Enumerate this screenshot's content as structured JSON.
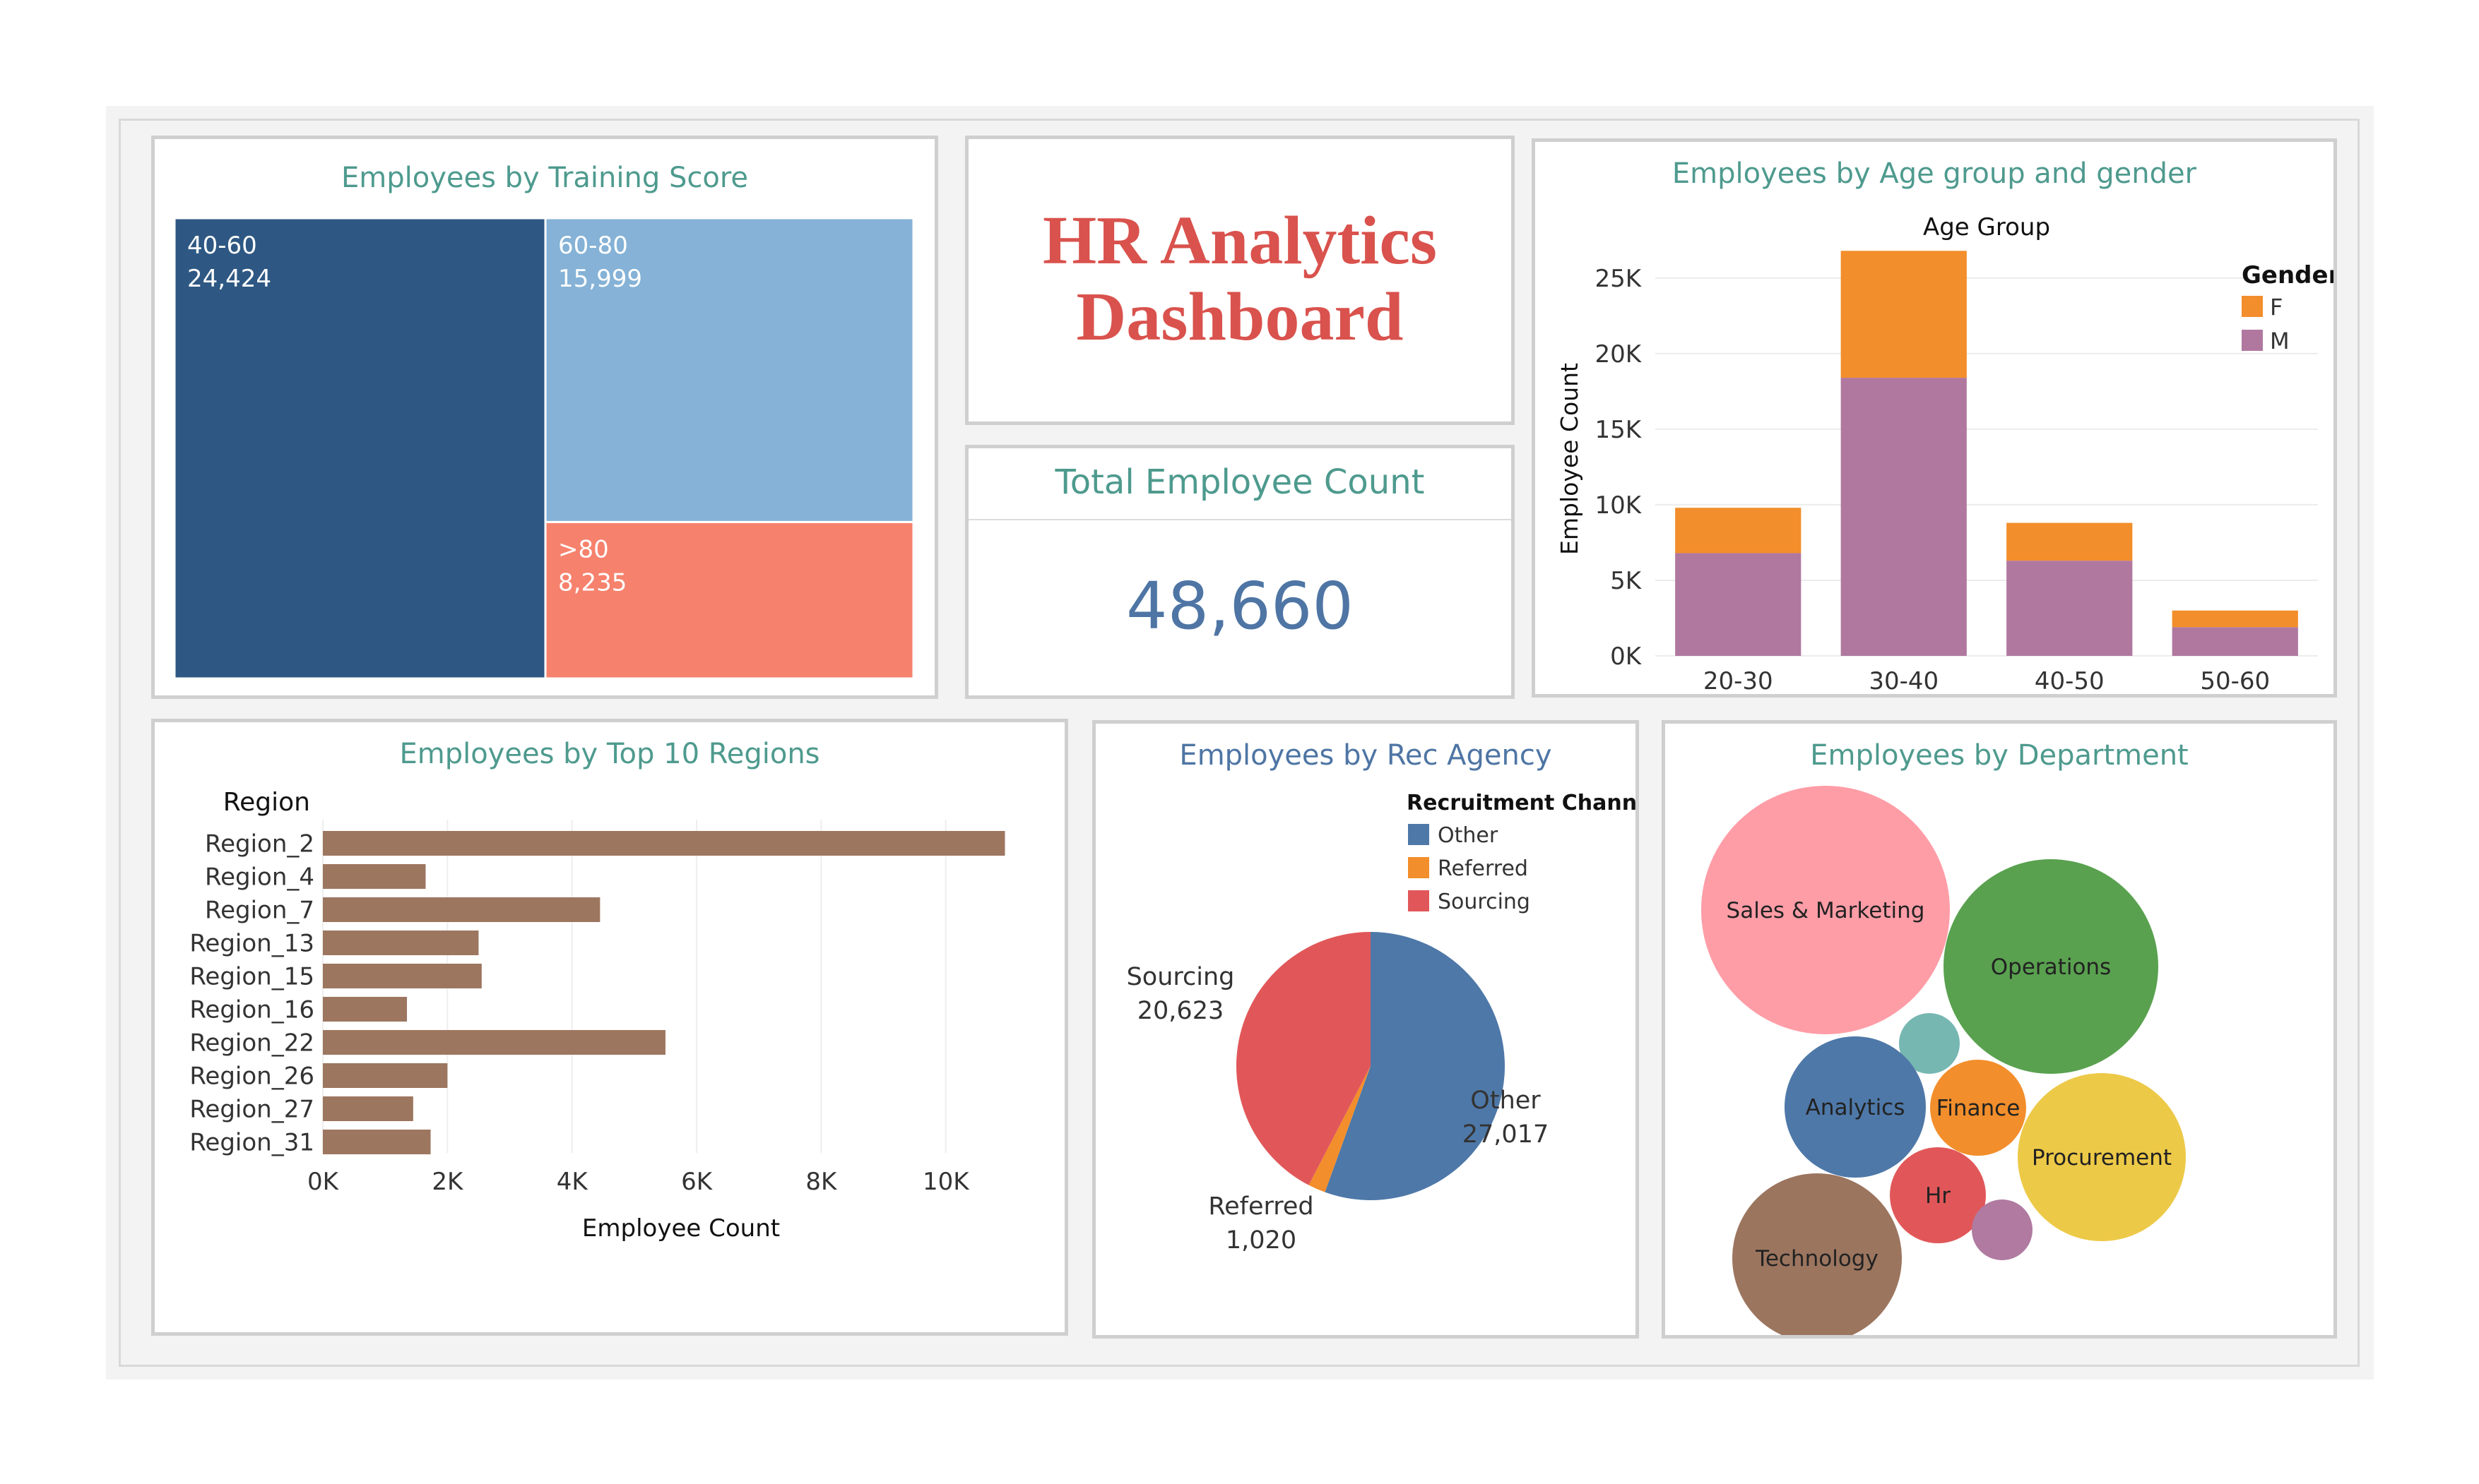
{
  "header": {
    "title": "HR Analytics\nDashboard"
  },
  "kpi": {
    "title": "Total Employee Count",
    "value": "48,660"
  },
  "colors": {
    "title_teal": "#4e9a8e",
    "title_red": "#d9524d",
    "kpi_blue": "#4e75a4"
  },
  "chart_data": [
    {
      "id": "training",
      "type": "treemap",
      "title": "Employees by Training Score",
      "items": [
        {
          "label": "40-60",
          "value": 24424,
          "display": "24,424",
          "color": "#2e5883"
        },
        {
          "label": "60-80",
          "value": 15999,
          "display": "15,999",
          "color": "#85b2d6"
        },
        {
          "label": ">80",
          "value": 8235,
          "display": "8,235",
          "color": "#f6826d"
        }
      ]
    },
    {
      "id": "age",
      "type": "bar",
      "stacked": true,
      "title": "Employees by Age group and gender",
      "xlabel": "Age Group",
      "ylabel": "Employee Count",
      "legend_title": "Gender",
      "legend_position": "top-right",
      "categories": [
        "20-30",
        "30-40",
        "40-50",
        "50-60"
      ],
      "series": [
        {
          "name": "M",
          "color": "#b0789f",
          "values": [
            6800,
            18400,
            6300,
            1900
          ]
        },
        {
          "name": "F",
          "color": "#f28e2b",
          "values": [
            3000,
            8400,
            2500,
            1100
          ]
        }
      ],
      "yticks": [
        0,
        5000,
        10000,
        15000,
        20000,
        25000
      ],
      "ytick_labels": [
        "0K",
        "5K",
        "10K",
        "15K",
        "20K",
        "25K"
      ],
      "ylim": [
        0,
        27000
      ],
      "grid": true
    },
    {
      "id": "regions",
      "type": "bar",
      "orientation": "horizontal",
      "title": "Employees by Top 10 Regions",
      "ylabel": "Region",
      "xlabel": "Employee Count",
      "color": "#9d7660",
      "categories": [
        "Region_2",
        "Region_4",
        "Region_7",
        "Region_13",
        "Region_15",
        "Region_16",
        "Region_22",
        "Region_26",
        "Region_27",
        "Region_31"
      ],
      "values": [
        10950,
        1650,
        4450,
        2500,
        2550,
        1350,
        5500,
        2000,
        1450,
        1730
      ],
      "xticks": [
        0,
        2000,
        4000,
        6000,
        8000,
        10000
      ],
      "xtick_labels": [
        "0K",
        "2K",
        "4K",
        "6K",
        "8K",
        "10K"
      ],
      "xlim": [
        0,
        11500
      ],
      "grid": true
    },
    {
      "id": "agency",
      "type": "pie",
      "title": "Employees by Rec Agency",
      "legend_title": "Recruitment Channel",
      "legend_position": "top-right",
      "slices": [
        {
          "label": "Other",
          "value": 27017,
          "display": "27,017",
          "color": "#4e78a8"
        },
        {
          "label": "Referred",
          "value": 1020,
          "display": "1,020",
          "color": "#f28e2b"
        },
        {
          "label": "Sourcing",
          "value": 20623,
          "display": "20,623",
          "color": "#e15759"
        }
      ]
    },
    {
      "id": "dept",
      "type": "bubble",
      "title": "Employees by Department",
      "bubbles": [
        {
          "label": "Sales & Marketing",
          "color": "#ff9da7"
        },
        {
          "label": "Operations",
          "color": "#59a14f"
        },
        {
          "label": "",
          "color": "#76b7b2"
        },
        {
          "label": "Analytics",
          "color": "#4e78a8"
        },
        {
          "label": "Finance",
          "color": "#f28e2b"
        },
        {
          "label": "Procurement",
          "color": "#edc948"
        },
        {
          "label": "Hr",
          "color": "#e15759"
        },
        {
          "label": "",
          "color": "#b07aa1"
        },
        {
          "label": "Technology",
          "color": "#9c755f"
        }
      ]
    }
  ]
}
